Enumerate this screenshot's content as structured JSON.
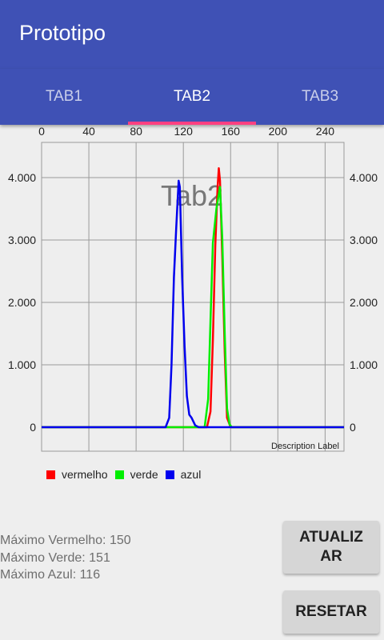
{
  "app": {
    "title": "Prototipo"
  },
  "tabs": [
    {
      "label": "TAB1",
      "active": false
    },
    {
      "label": "TAB2",
      "active": true
    },
    {
      "label": "TAB3",
      "active": false
    }
  ],
  "colors": {
    "primary": "#3f51b5",
    "indicator": "#ff4081",
    "red": "#ff0000",
    "green": "#00ee00",
    "blue": "#0000ee"
  },
  "chart_data": {
    "type": "line",
    "watermark": "Tab2",
    "description": "Description Label",
    "x_ticks": [
      "0",
      "40",
      "80",
      "120",
      "160",
      "200",
      "240"
    ],
    "y_ticks": [
      "0",
      "1.000",
      "2.000",
      "3.000",
      "4.000"
    ],
    "xlim": [
      0,
      256
    ],
    "ylim": [
      0,
      4700
    ],
    "grid": true,
    "legend_position": "bottom-left",
    "series": [
      {
        "name": "vermelho",
        "color": "#ff0000",
        "points": [
          [
            0,
            0
          ],
          [
            140,
            0
          ],
          [
            143,
            250
          ],
          [
            145,
            1400
          ],
          [
            147,
            2900
          ],
          [
            149,
            3850
          ],
          [
            150,
            4150
          ],
          [
            151,
            3950
          ],
          [
            153,
            2700
          ],
          [
            155,
            1200
          ],
          [
            157,
            150
          ],
          [
            160,
            0
          ],
          [
            256,
            0
          ]
        ]
      },
      {
        "name": "verde",
        "color": "#00ee00",
        "points": [
          [
            0,
            0
          ],
          [
            138,
            0
          ],
          [
            141,
            450
          ],
          [
            143,
            1700
          ],
          [
            145,
            2950
          ],
          [
            148,
            3500
          ],
          [
            151,
            3850
          ],
          [
            153,
            3000
          ],
          [
            155,
            1500
          ],
          [
            157,
            300
          ],
          [
            159,
            50
          ],
          [
            161,
            0
          ],
          [
            256,
            0
          ]
        ]
      },
      {
        "name": "azul",
        "color": "#0000ee",
        "points": [
          [
            0,
            0
          ],
          [
            105,
            0
          ],
          [
            108,
            150
          ],
          [
            110,
            1000
          ],
          [
            112,
            2400
          ],
          [
            114,
            3200
          ],
          [
            116,
            3950
          ],
          [
            117,
            3850
          ],
          [
            118,
            3150
          ],
          [
            119,
            2400
          ],
          [
            121,
            1300
          ],
          [
            123,
            500
          ],
          [
            125,
            200
          ],
          [
            127,
            150
          ],
          [
            130,
            30
          ],
          [
            133,
            0
          ],
          [
            256,
            0
          ]
        ]
      }
    ]
  },
  "stats": {
    "max_red": "Máximo Vermelho: 150",
    "max_green": "Máximo Verde: 151",
    "max_blue": "Máximo Azul: 116"
  },
  "buttons": {
    "update": "ATUALIZ\nAR",
    "reset": "RESETAR"
  }
}
